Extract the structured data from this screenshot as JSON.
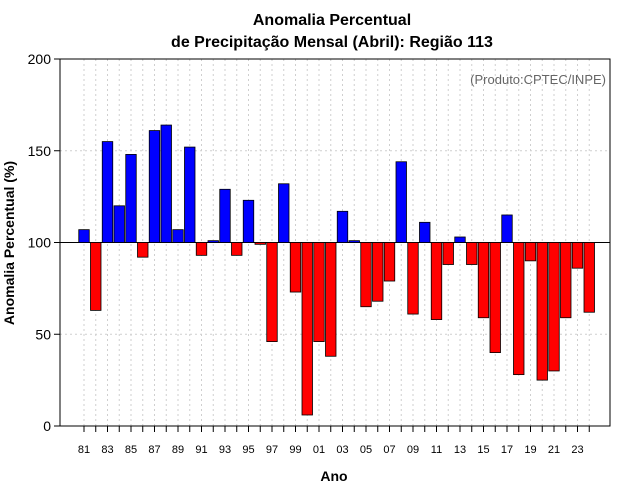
{
  "chart_data": {
    "type": "bar",
    "title_line1": "Anomalia Percentual",
    "title_line2": "de Precipitação Mensal (Abril): Região 113",
    "xlabel": "Ano",
    "ylabel": "Anomalia Percentual (%)",
    "credit": "(Produto:CPTEC/INPE)",
    "baseline": 100,
    "ylim": [
      0,
      200
    ],
    "yticks": [
      0,
      50,
      100,
      150,
      200
    ],
    "xtick_labels": [
      "81",
      "83",
      "85",
      "87",
      "89",
      "91",
      "93",
      "95",
      "97",
      "99",
      "01",
      "03",
      "05",
      "07",
      "09",
      "11",
      "13",
      "15",
      "17",
      "19",
      "21",
      "23"
    ],
    "categories": [
      "1981",
      "1982",
      "1983",
      "1984",
      "1985",
      "1986",
      "1987",
      "1988",
      "1989",
      "1990",
      "1991",
      "1992",
      "1993",
      "1994",
      "1995",
      "1996",
      "1997",
      "1998",
      "1999",
      "2000",
      "2001",
      "2002",
      "2003",
      "2004",
      "2005",
      "2006",
      "2007",
      "2008",
      "2009",
      "2010",
      "2011",
      "2012",
      "2013",
      "2014",
      "2015",
      "2016",
      "2017",
      "2018",
      "2019",
      "2020",
      "2021",
      "2022",
      "2023",
      "2024"
    ],
    "values": [
      107,
      63,
      155,
      120,
      148,
      92,
      161,
      164,
      107,
      152,
      93,
      101,
      129,
      93,
      123,
      99,
      46,
      132,
      73,
      6,
      46,
      38,
      117,
      101,
      65,
      68,
      79,
      144,
      61,
      111,
      58,
      88,
      103,
      88,
      59,
      40,
      115,
      28,
      90,
      25,
      30,
      59,
      86,
      62
    ],
    "colors": {
      "above": "#0000ff",
      "below": "#ff0000"
    }
  }
}
